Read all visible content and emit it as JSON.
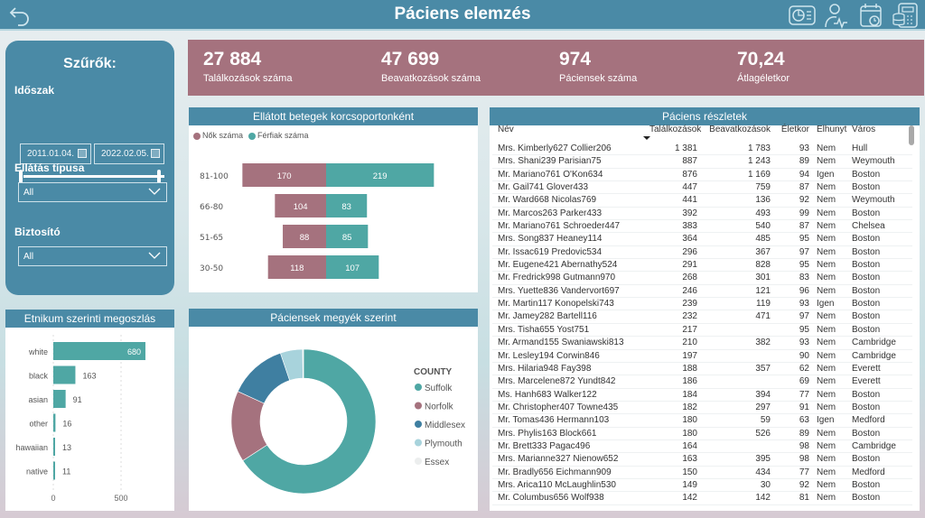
{
  "header": {
    "title": "Páciens elemzés",
    "back_icon": "back-arrow-icon",
    "nav_icons": [
      "dashboard-icon",
      "patient-activity-icon",
      "calendar-clock-icon",
      "finance-calculator-icon"
    ]
  },
  "filters": {
    "title": "Szűrők:",
    "period_label": "Időszak",
    "date_from": "2011.01.04.",
    "date_to": "2022.02.05.",
    "care_type_label": "Ellátás típusa",
    "care_type_value": "All",
    "insurer_label": "Biztosító",
    "insurer_value": "All"
  },
  "kpis": [
    {
      "value": "27 884",
      "label": "Találkozások száma"
    },
    {
      "value": "47 699",
      "label": "Beavatkozások száma"
    },
    {
      "value": "974",
      "label": "Páciensek száma"
    },
    {
      "value": "70,24",
      "label": "Átlagéletkor"
    }
  ],
  "colors": {
    "primary": "#4a8aa6",
    "kpi": "#a5727e",
    "female": "#a5727e",
    "male": "#4fa7a4",
    "suffolk": "#4fa7a4",
    "norfolk": "#a5727e",
    "middlesex": "#3f7fa1",
    "plymouth": "#a8d3dc",
    "essex": "#eceeee"
  },
  "chart_data": [
    {
      "type": "bar",
      "title": "Ellátott betegek korcsoportonként",
      "orientation": "horizontal-diverging",
      "categories": [
        "81-100",
        "66-80",
        "51-65",
        "30-50"
      ],
      "series": [
        {
          "name": "Nők száma",
          "values": [
            170,
            104,
            88,
            118
          ]
        },
        {
          "name": "Férfiak száma",
          "values": [
            219,
            83,
            85,
            107
          ]
        }
      ],
      "legend": "top-left"
    },
    {
      "type": "bar",
      "title": "Etnikum szerinti megoszlás",
      "orientation": "horizontal",
      "categories": [
        "white",
        "black",
        "asian",
        "other",
        "hawaiian",
        "native"
      ],
      "values": [
        680,
        163,
        91,
        16,
        13,
        11
      ],
      "xticks": [
        "0",
        "500"
      ],
      "xlim": [
        0,
        700
      ],
      "grid": true
    },
    {
      "type": "pie",
      "variant": "donut",
      "title": "Páciensek megyék szerint",
      "legend_title": "COUNTY",
      "categories": [
        "Suffolk",
        "Norfolk",
        "Middlesex",
        "Plymouth",
        "Essex"
      ],
      "values": [
        66,
        16,
        13,
        5,
        0.2
      ],
      "legend": "right"
    }
  ],
  "table": {
    "title": "Páciens részletek",
    "columns": [
      "Név",
      "Találkozások",
      "Beavatkozások",
      "Életkor",
      "Elhunyt",
      "Város"
    ],
    "rows": [
      [
        "Mrs. Kimberly627 Collier206",
        "1 381",
        "1 783",
        "93",
        "Nem",
        "Hull"
      ],
      [
        "Mrs. Shani239 Parisian75",
        "887",
        "1 243",
        "89",
        "Nem",
        "Weymouth"
      ],
      [
        "Mr. Mariano761 O'Kon634",
        "876",
        "1 169",
        "94",
        "Igen",
        "Boston"
      ],
      [
        "Mr. Gail741 Glover433",
        "447",
        "759",
        "87",
        "Nem",
        "Boston"
      ],
      [
        "Mr. Ward668 Nicolas769",
        "441",
        "136",
        "92",
        "Nem",
        "Weymouth"
      ],
      [
        "Mr. Marcos263 Parker433",
        "392",
        "493",
        "99",
        "Nem",
        "Boston"
      ],
      [
        "Mr. Mariano761 Schroeder447",
        "383",
        "540",
        "87",
        "Nem",
        "Chelsea"
      ],
      [
        "Mrs. Song837 Heaney114",
        "364",
        "485",
        "95",
        "Nem",
        "Boston"
      ],
      [
        "Mr. Issac619 Predovic534",
        "296",
        "367",
        "97",
        "Nem",
        "Boston"
      ],
      [
        "Mr. Eugene421 Abernathy524",
        "291",
        "828",
        "95",
        "Nem",
        "Boston"
      ],
      [
        "Mr. Fredrick998 Gutmann970",
        "268",
        "301",
        "83",
        "Nem",
        "Boston"
      ],
      [
        "Mrs. Yuette836 Vandervort697",
        "246",
        "121",
        "96",
        "Nem",
        "Boston"
      ],
      [
        "Mr. Martin117 Konopelski743",
        "239",
        "119",
        "93",
        "Igen",
        "Boston"
      ],
      [
        "Mr. Jamey282 Bartell116",
        "232",
        "471",
        "97",
        "Nem",
        "Boston"
      ],
      [
        "Mrs. Tisha655 Yost751",
        "217",
        "",
        "95",
        "Nem",
        "Boston"
      ],
      [
        "Mr. Armand155 Swaniawski813",
        "210",
        "382",
        "93",
        "Nem",
        "Cambridge"
      ],
      [
        "Mr. Lesley194 Corwin846",
        "197",
        "",
        "90",
        "Nem",
        "Cambridge"
      ],
      [
        "Mrs. Hilaria948 Fay398",
        "188",
        "357",
        "62",
        "Nem",
        "Everett"
      ],
      [
        "Mrs. Marcelene872 Yundt842",
        "186",
        "",
        "69",
        "Nem",
        "Everett"
      ],
      [
        "Ms. Hanh683 Walker122",
        "184",
        "394",
        "77",
        "Nem",
        "Boston"
      ],
      [
        "Mr. Christopher407 Towne435",
        "182",
        "297",
        "91",
        "Nem",
        "Boston"
      ],
      [
        "Mr. Tomas436 Hermann103",
        "180",
        "59",
        "63",
        "Igen",
        "Medford"
      ],
      [
        "Mrs. Phylis163 Block661",
        "180",
        "526",
        "89",
        "Nem",
        "Boston"
      ],
      [
        "Mr. Brett333 Pagac496",
        "164",
        "",
        "98",
        "Nem",
        "Cambridge"
      ],
      [
        "Mrs. Marianne327 Nienow652",
        "163",
        "395",
        "98",
        "Nem",
        "Boston"
      ],
      [
        "Mr. Bradly656 Eichmann909",
        "150",
        "434",
        "77",
        "Nem",
        "Medford"
      ],
      [
        "Mrs. Arica110 McLaughlin530",
        "149",
        "30",
        "92",
        "Nem",
        "Boston"
      ],
      [
        "Mr. Columbus656 Wolf938",
        "142",
        "142",
        "81",
        "Nem",
        "Boston"
      ]
    ]
  }
}
